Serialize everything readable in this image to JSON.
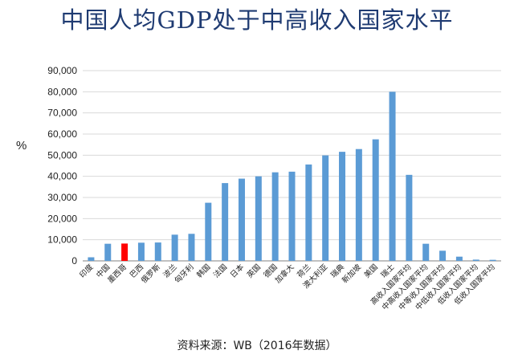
{
  "chart_data": {
    "type": "bar",
    "title": "中国人均GDP处于中高收入国家水平",
    "ylabel": "%",
    "source": "资料来源：WB（2016年数据）",
    "ylim": [
      0,
      90000
    ],
    "yticks": [
      "0",
      "10,000",
      "20,000",
      "30,000",
      "40,000",
      "50,000",
      "60,000",
      "70,000",
      "80,000",
      "90,000"
    ],
    "grid": true,
    "colors": {
      "bar": "#5b9bd5",
      "highlight": "#ff0000",
      "grid": "#d9d9d9"
    },
    "highlight_category": "墨西哥",
    "categories": [
      "印度",
      "中国",
      "墨西哥",
      "巴西",
      "俄罗斯",
      "波兰",
      "匈牙利",
      "韩国",
      "法国",
      "日本",
      "英国",
      "德国",
      "加拿大",
      "荷兰",
      "澳大利亚",
      "瑞典",
      "新加坡",
      "美国",
      "瑞士",
      "高收入国家平均",
      "中高收入国家平均",
      "中等收入国家平均",
      "中低收入国家平均",
      "低收入国家平均",
      "低收入国家平均"
    ],
    "values": [
      1700,
      8100,
      8200,
      8600,
      8700,
      12400,
      12800,
      27500,
      36800,
      38900,
      40000,
      41900,
      42200,
      45600,
      49900,
      51600,
      52900,
      57500,
      80000,
      40700,
      8100,
      4800,
      2000,
      600,
      500
    ]
  }
}
